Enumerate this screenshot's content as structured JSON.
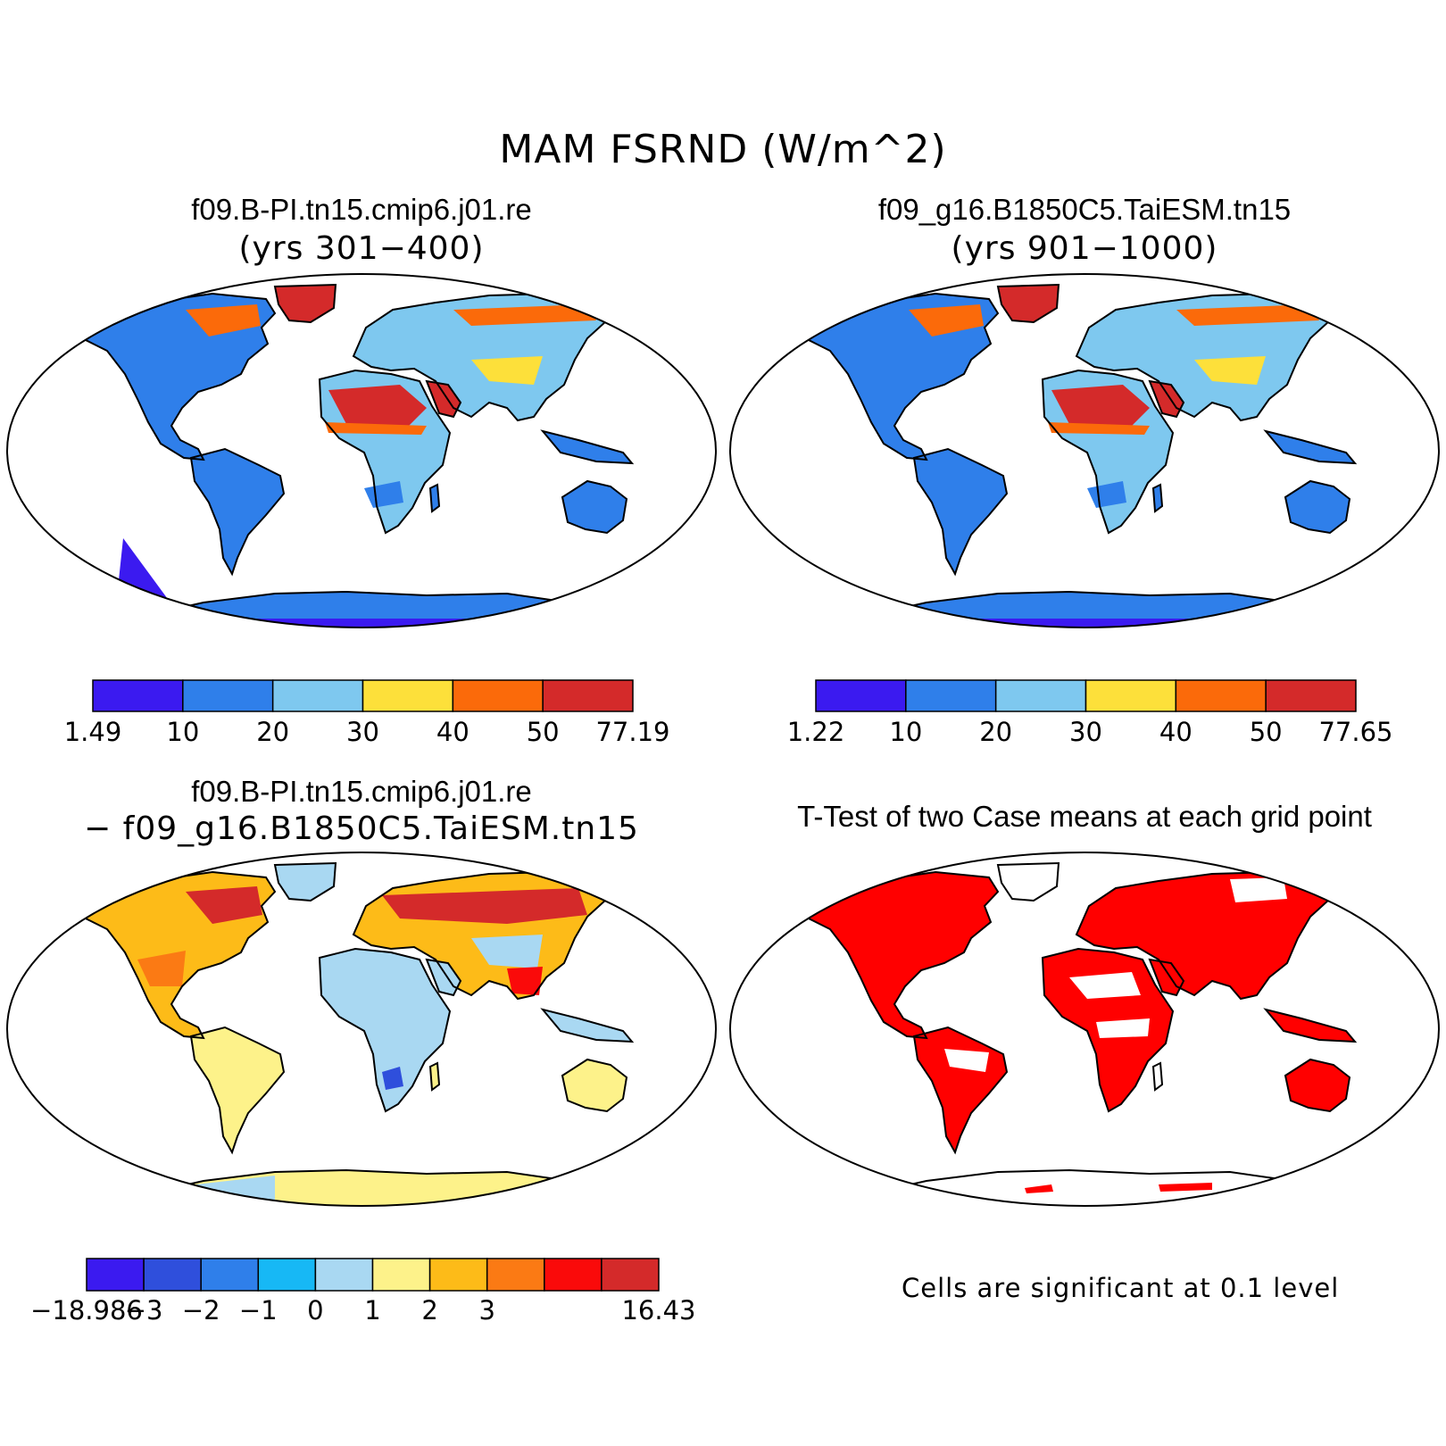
{
  "figure": {
    "title": "MAM FSRND (W/m^2)"
  },
  "panels": [
    {
      "title": "f09.B-PI.tn15.cmip6.j01.re",
      "subtitle": "(yrs 301−400)",
      "colorbar": {
        "colors": [
          "#3b1af0",
          "#2f7fea",
          "#7ec8ef",
          "#fde03a",
          "#fb6a0a",
          "#d42a2a"
        ],
        "labels": [
          "1.49",
          "10",
          "20",
          "30",
          "40",
          "50",
          "77.19"
        ]
      }
    },
    {
      "title": "f09_g16.B1850C5.TaiESM.tn15",
      "subtitle": "(yrs 901−1000)",
      "colorbar": {
        "colors": [
          "#3b1af0",
          "#2f7fea",
          "#7ec8ef",
          "#fde03a",
          "#fb6a0a",
          "#d42a2a"
        ],
        "labels": [
          "1.22",
          "10",
          "20",
          "30",
          "40",
          "50",
          "77.65"
        ]
      }
    },
    {
      "title": "f09.B-PI.tn15.cmip6.j01.re",
      "subtitle": "− f09_g16.B1850C5.TaiESM.tn15",
      "colorbar": {
        "colors": [
          "#3b1af0",
          "#2f4fdc",
          "#2f7fea",
          "#17b8f5",
          "#a9d8f2",
          "#fdf28a",
          "#fdbb18",
          "#fb7a14",
          "#fa0a0a",
          "#d42a2a"
        ],
        "labels": [
          "−18.986",
          "−3",
          "−2",
          "−1",
          "0",
          "1",
          "2",
          "3",
          "16.43"
        ]
      }
    },
    {
      "title": "T-Test of two Case means at each grid point",
      "note": "Cells are significant at 0.1 level"
    }
  ],
  "map_colors": {
    "outline": "#000000",
    "ocean": "#ffffff",
    "significant": "#ff0000"
  }
}
